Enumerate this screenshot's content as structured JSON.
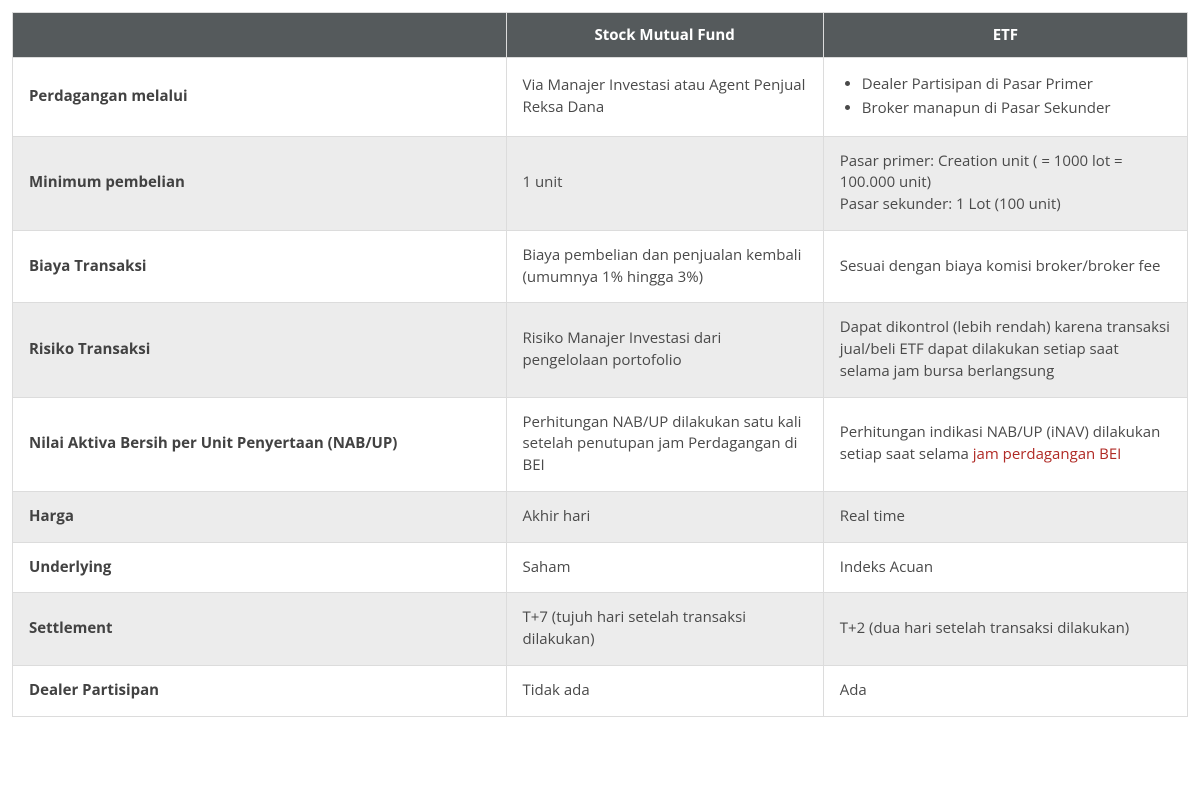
{
  "header": {
    "blank": "",
    "col1": "Stock Mutual Fund",
    "col2": "ETF"
  },
  "rows": {
    "r0": {
      "label": "Perdagangan melalui",
      "smf": "Via Manajer Investasi atau Agent Penjual Reksa Dana",
      "etf_list": {
        "i0": "Dealer Partisipan di Pasar Primer",
        "i1": "Broker manapun di Pasar Sekunder"
      }
    },
    "r1": {
      "label": "Minimum pembelian",
      "smf": "1 unit",
      "etf": "Pasar primer: Creation unit ( = 1000 lot = 100.000 unit)\nPasar sekunder: 1 Lot (100 unit)"
    },
    "r2": {
      "label": "Biaya Transaksi",
      "smf": "Biaya pembelian dan penjualan kembali (umumnya 1% hingga 3%)",
      "etf": "Sesuai dengan biaya komisi broker/broker fee"
    },
    "r3": {
      "label": "Risiko Transaksi",
      "smf": "Risiko Manajer Investasi dari pengelolaan portofolio",
      "etf": "Dapat dikontrol (lebih rendah) karena transaksi jual/beli ETF dapat dilakukan setiap saat selama jam bursa berlangsung"
    },
    "r4": {
      "label": "Nilai Aktiva Bersih per Unit Penyertaan (NAB/UP)",
      "smf": "Perhitungan NAB/UP dilakukan satu kali setelah penutupan jam Perdagangan di BEI",
      "etf_pre": "Perhitungan indikasi NAB/UP (iNAV) dilakukan setiap saat selama ",
      "etf_link": "jam perdagangan BEI"
    },
    "r5": {
      "label": "Harga",
      "smf": "Akhir hari",
      "etf": "Real time"
    },
    "r6": {
      "label": "Underlying",
      "smf": "Saham",
      "etf": "Indeks Acuan"
    },
    "r7": {
      "label": "Settlement",
      "smf": "T+7 (tujuh hari setelah transaksi dilakukan)",
      "etf": "T+2 (dua hari setelah transaksi dilakukan)"
    },
    "r8": {
      "label": "Dealer Partisipan",
      "smf": "Tidak ada",
      "etf": "Ada"
    }
  }
}
